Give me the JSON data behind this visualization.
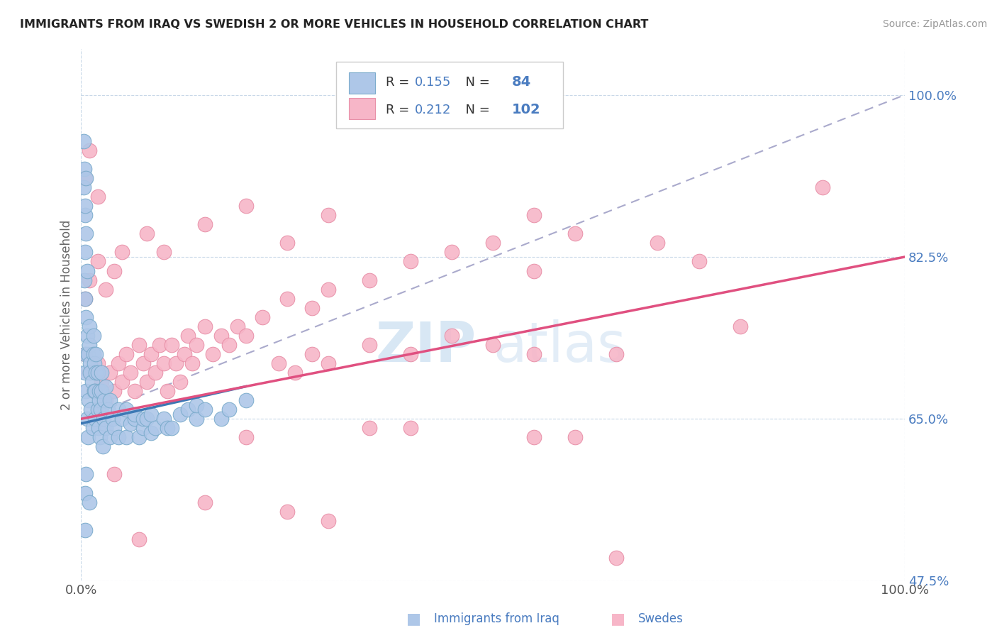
{
  "title": "IMMIGRANTS FROM IRAQ VS SWEDISH 2 OR MORE VEHICLES IN HOUSEHOLD CORRELATION CHART",
  "source": "Source: ZipAtlas.com",
  "xlabel": "Immigrants from Iraq",
  "ylabel": "2 or more Vehicles in Household",
  "xlim": [
    0,
    100
  ],
  "ylim": [
    47.5,
    105
  ],
  "yticks": [
    47.5,
    65.0,
    82.5,
    100.0
  ],
  "xticks": [
    0,
    100
  ],
  "legend_r1": "R = 0.155",
  "legend_n1": "84",
  "legend_r2": "R = 0.212",
  "legend_n2": "102",
  "watermark_zip": "ZIP",
  "watermark_atlas": "atlas",
  "blue_color": "#aec7e8",
  "pink_color": "#f7b6c8",
  "blue_line_color": "#3c78b4",
  "pink_line_color": "#e05080",
  "gray_line_color": "#aaaacc",
  "blue_scatter": [
    [
      0.3,
      90.0
    ],
    [
      0.3,
      95.0
    ],
    [
      0.4,
      80.0
    ],
    [
      0.4,
      92.0
    ],
    [
      0.5,
      70.0
    ],
    [
      0.5,
      72.0
    ],
    [
      0.5,
      78.0
    ],
    [
      0.5,
      83.0
    ],
    [
      0.5,
      87.0
    ],
    [
      0.5,
      88.0
    ],
    [
      0.5,
      57.0
    ],
    [
      0.5,
      53.0
    ],
    [
      0.6,
      68.0
    ],
    [
      0.6,
      76.0
    ],
    [
      0.6,
      85.0
    ],
    [
      0.6,
      91.0
    ],
    [
      0.6,
      59.0
    ],
    [
      0.7,
      65.0
    ],
    [
      0.7,
      81.0
    ],
    [
      0.7,
      74.0
    ],
    [
      0.8,
      63.0
    ],
    [
      0.8,
      72.0
    ],
    [
      0.9,
      67.0
    ],
    [
      1.0,
      75.0
    ],
    [
      1.0,
      73.0
    ],
    [
      1.0,
      56.0
    ],
    [
      1.1,
      71.0
    ],
    [
      1.1,
      70.0
    ],
    [
      1.2,
      66.0
    ],
    [
      1.3,
      69.0
    ],
    [
      1.4,
      64.0
    ],
    [
      1.5,
      72.0
    ],
    [
      1.5,
      74.0
    ],
    [
      1.6,
      68.0
    ],
    [
      1.6,
      71.0
    ],
    [
      1.7,
      65.0
    ],
    [
      1.7,
      68.0
    ],
    [
      1.8,
      70.0
    ],
    [
      1.8,
      72.0
    ],
    [
      2.0,
      66.0
    ],
    [
      2.0,
      70.0
    ],
    [
      2.1,
      64.0
    ],
    [
      2.2,
      67.0
    ],
    [
      2.2,
      68.0
    ],
    [
      2.3,
      63.0
    ],
    [
      2.4,
      66.0
    ],
    [
      2.5,
      68.0
    ],
    [
      2.5,
      70.0
    ],
    [
      2.6,
      62.0
    ],
    [
      2.7,
      65.0
    ],
    [
      2.8,
      67.0
    ],
    [
      3.0,
      64.0
    ],
    [
      3.0,
      68.5
    ],
    [
      3.2,
      66.0
    ],
    [
      3.5,
      63.0
    ],
    [
      3.5,
      67.0
    ],
    [
      3.8,
      65.0
    ],
    [
      4.0,
      64.0
    ],
    [
      4.5,
      63.0
    ],
    [
      4.5,
      66.0
    ],
    [
      5.0,
      65.0
    ],
    [
      5.5,
      63.0
    ],
    [
      5.5,
      66.0
    ],
    [
      6.0,
      64.5
    ],
    [
      6.5,
      65.0
    ],
    [
      6.5,
      65.5
    ],
    [
      7.0,
      63.0
    ],
    [
      7.5,
      64.0
    ],
    [
      7.5,
      65.0
    ],
    [
      8.0,
      65.0
    ],
    [
      8.5,
      63.5
    ],
    [
      8.5,
      65.5
    ],
    [
      9.0,
      64.0
    ],
    [
      10.0,
      65.0
    ],
    [
      10.5,
      64.0
    ],
    [
      11.0,
      64.0
    ],
    [
      12.0,
      65.5
    ],
    [
      13.0,
      66.0
    ],
    [
      14.0,
      65.0
    ],
    [
      14.0,
      66.5
    ],
    [
      15.0,
      66.0
    ],
    [
      17.0,
      65.0
    ],
    [
      18.0,
      66.0
    ],
    [
      20.0,
      67.0
    ]
  ],
  "pink_scatter": [
    [
      0.5,
      72.0
    ],
    [
      0.5,
      78.0
    ],
    [
      0.5,
      91.0
    ],
    [
      1.0,
      70.0
    ],
    [
      1.0,
      80.0
    ],
    [
      1.0,
      94.0
    ],
    [
      1.5,
      68.0
    ],
    [
      2.0,
      71.0
    ],
    [
      2.0,
      82.0
    ],
    [
      2.0,
      89.0
    ],
    [
      2.5,
      69.0
    ],
    [
      3.0,
      67.0
    ],
    [
      3.0,
      79.0
    ],
    [
      3.5,
      70.0
    ],
    [
      4.0,
      68.0
    ],
    [
      4.0,
      81.0
    ],
    [
      4.0,
      59.0
    ],
    [
      4.5,
      71.0
    ],
    [
      5.0,
      69.0
    ],
    [
      5.0,
      83.0
    ],
    [
      5.5,
      72.0
    ],
    [
      6.0,
      70.0
    ],
    [
      6.5,
      68.0
    ],
    [
      7.0,
      73.0
    ],
    [
      7.0,
      52.0
    ],
    [
      7.5,
      71.0
    ],
    [
      8.0,
      69.0
    ],
    [
      8.0,
      85.0
    ],
    [
      8.5,
      72.0
    ],
    [
      9.0,
      70.0
    ],
    [
      9.5,
      73.0
    ],
    [
      10.0,
      71.0
    ],
    [
      10.0,
      83.0
    ],
    [
      10.5,
      68.0
    ],
    [
      11.0,
      73.0
    ],
    [
      11.5,
      71.0
    ],
    [
      12.0,
      69.0
    ],
    [
      12.5,
      72.0
    ],
    [
      13.0,
      74.0
    ],
    [
      13.5,
      71.0
    ],
    [
      14.0,
      73.0
    ],
    [
      15.0,
      75.0
    ],
    [
      15.0,
      56.0
    ],
    [
      15.0,
      86.0
    ],
    [
      16.0,
      72.0
    ],
    [
      17.0,
      74.0
    ],
    [
      18.0,
      73.0
    ],
    [
      19.0,
      75.0
    ],
    [
      20.0,
      74.0
    ],
    [
      20.0,
      63.0
    ],
    [
      20.0,
      88.0
    ],
    [
      22.0,
      76.0
    ],
    [
      24.0,
      71.0
    ],
    [
      25.0,
      78.0
    ],
    [
      25.0,
      55.0
    ],
    [
      25.0,
      84.0
    ],
    [
      26.0,
      70.0
    ],
    [
      28.0,
      77.0
    ],
    [
      28.0,
      72.0
    ],
    [
      30.0,
      79.0
    ],
    [
      30.0,
      71.0
    ],
    [
      30.0,
      54.0
    ],
    [
      30.0,
      87.0
    ],
    [
      35.0,
      80.0
    ],
    [
      35.0,
      73.0
    ],
    [
      35.0,
      64.0
    ],
    [
      40.0,
      82.0
    ],
    [
      40.0,
      72.0
    ],
    [
      40.0,
      64.0
    ],
    [
      45.0,
      83.0
    ],
    [
      45.0,
      74.0
    ],
    [
      50.0,
      84.0
    ],
    [
      50.0,
      73.0
    ],
    [
      50.0,
      100.0
    ],
    [
      55.0,
      81.0
    ],
    [
      55.0,
      72.0
    ],
    [
      55.0,
      63.0
    ],
    [
      55.0,
      87.0
    ],
    [
      60.0,
      85.0
    ],
    [
      60.0,
      63.0
    ],
    [
      65.0,
      72.0
    ],
    [
      65.0,
      50.0
    ],
    [
      70.0,
      84.0
    ],
    [
      75.0,
      82.0
    ],
    [
      80.0,
      75.0
    ],
    [
      90.0,
      90.0
    ]
  ],
  "blue_line_x": [
    0,
    20
  ],
  "blue_line_y": [
    64.5,
    68.5
  ],
  "pink_line_x": [
    0,
    100
  ],
  "pink_line_y": [
    65.0,
    82.5
  ],
  "gray_line_x": [
    0,
    100
  ],
  "gray_line_y": [
    65.0,
    100.0
  ]
}
